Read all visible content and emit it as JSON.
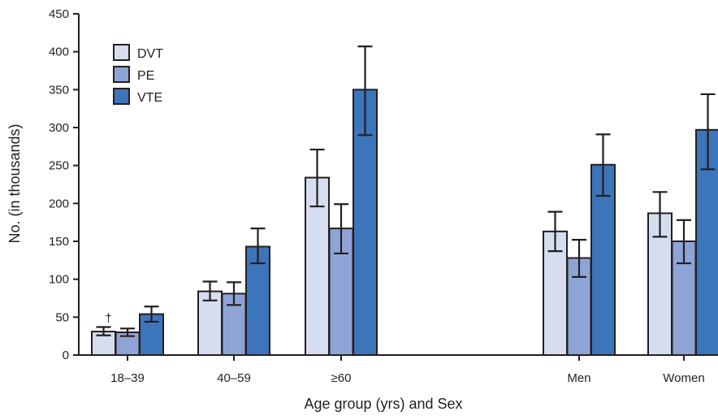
{
  "chart_data": {
    "type": "bar",
    "title": "",
    "xlabel": "Age group (yrs) and Sex",
    "ylabel": "No. (in thousands)",
    "ylim": [
      0,
      450
    ],
    "yticks": [
      0,
      50,
      100,
      150,
      200,
      250,
      300,
      350,
      400,
      450
    ],
    "grid": false,
    "legend_position": "top-left",
    "categories": [
      "18–39",
      "40–59",
      "≥60",
      "Men",
      "Women"
    ],
    "series": [
      {
        "name": "DVT",
        "color": "#d5ddef",
        "values": [
          31,
          84,
          234,
          163,
          187
        ],
        "error_low": [
          26,
          72,
          196,
          137,
          156
        ],
        "error_high": [
          37,
          97,
          271,
          189,
          215
        ]
      },
      {
        "name": "PE",
        "color": "#8fa4d6",
        "values": [
          30,
          81,
          167,
          128,
          150
        ],
        "error_low": [
          25,
          66,
          134,
          103,
          121
        ],
        "error_high": [
          35,
          96,
          199,
          152,
          178
        ]
      },
      {
        "name": "VTE",
        "color": "#3d75ba",
        "values": [
          54,
          143,
          350,
          251,
          297
        ],
        "error_low": [
          44,
          121,
          290,
          210,
          245
        ],
        "error_high": [
          64,
          167,
          407,
          291,
          344
        ]
      }
    ],
    "annotations": [
      {
        "text": "†",
        "category": "18–39",
        "series": "DVT"
      }
    ]
  }
}
